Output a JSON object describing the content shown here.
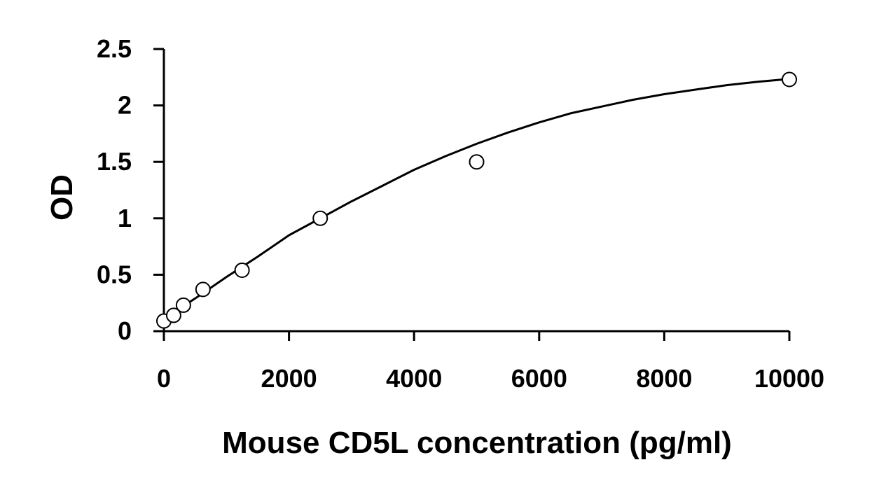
{
  "chart_data": {
    "type": "scatter",
    "title": "",
    "xlabel": "Mouse CD5L concentration (pg/ml)",
    "ylabel": "OD",
    "xlim": [
      0,
      10000
    ],
    "ylim": [
      0,
      2.5
    ],
    "x_ticks": [
      0,
      2000,
      4000,
      6000,
      8000,
      10000
    ],
    "x_tick_labels": [
      "0",
      "2000",
      "4000",
      "6000",
      "8000",
      "10000"
    ],
    "y_ticks": [
      0,
      0.5,
      1,
      1.5,
      2,
      2.5
    ],
    "y_tick_labels": [
      "0",
      "0.5",
      "1",
      "1.5",
      "2",
      "2.5"
    ],
    "grid": false,
    "legend": "none",
    "series": [
      {
        "marker": "open-circle",
        "x": [
          0,
          156,
          312,
          625,
          1250,
          2500,
          5000,
          10000
        ],
        "y": [
          0.09,
          0.14,
          0.23,
          0.37,
          0.54,
          1.0,
          1.5,
          2.23
        ]
      }
    ],
    "fit_curve": {
      "style": "solid-black",
      "x": [
        0,
        500,
        1000,
        1500,
        2000,
        2500,
        3000,
        3500,
        4000,
        4500,
        5000,
        5500,
        6000,
        6500,
        7000,
        7500,
        8000,
        8500,
        9000,
        9500,
        10000
      ],
      "y": [
        0.11,
        0.29,
        0.48,
        0.66,
        0.85,
        1.0,
        1.15,
        1.29,
        1.43,
        1.55,
        1.66,
        1.76,
        1.85,
        1.93,
        1.99,
        2.05,
        2.1,
        2.14,
        2.18,
        2.21,
        2.235
      ]
    },
    "colors": {
      "axis": "#000000",
      "marker_stroke": "#000000",
      "marker_fill": "#ffffff",
      "curve": "#000000"
    }
  }
}
